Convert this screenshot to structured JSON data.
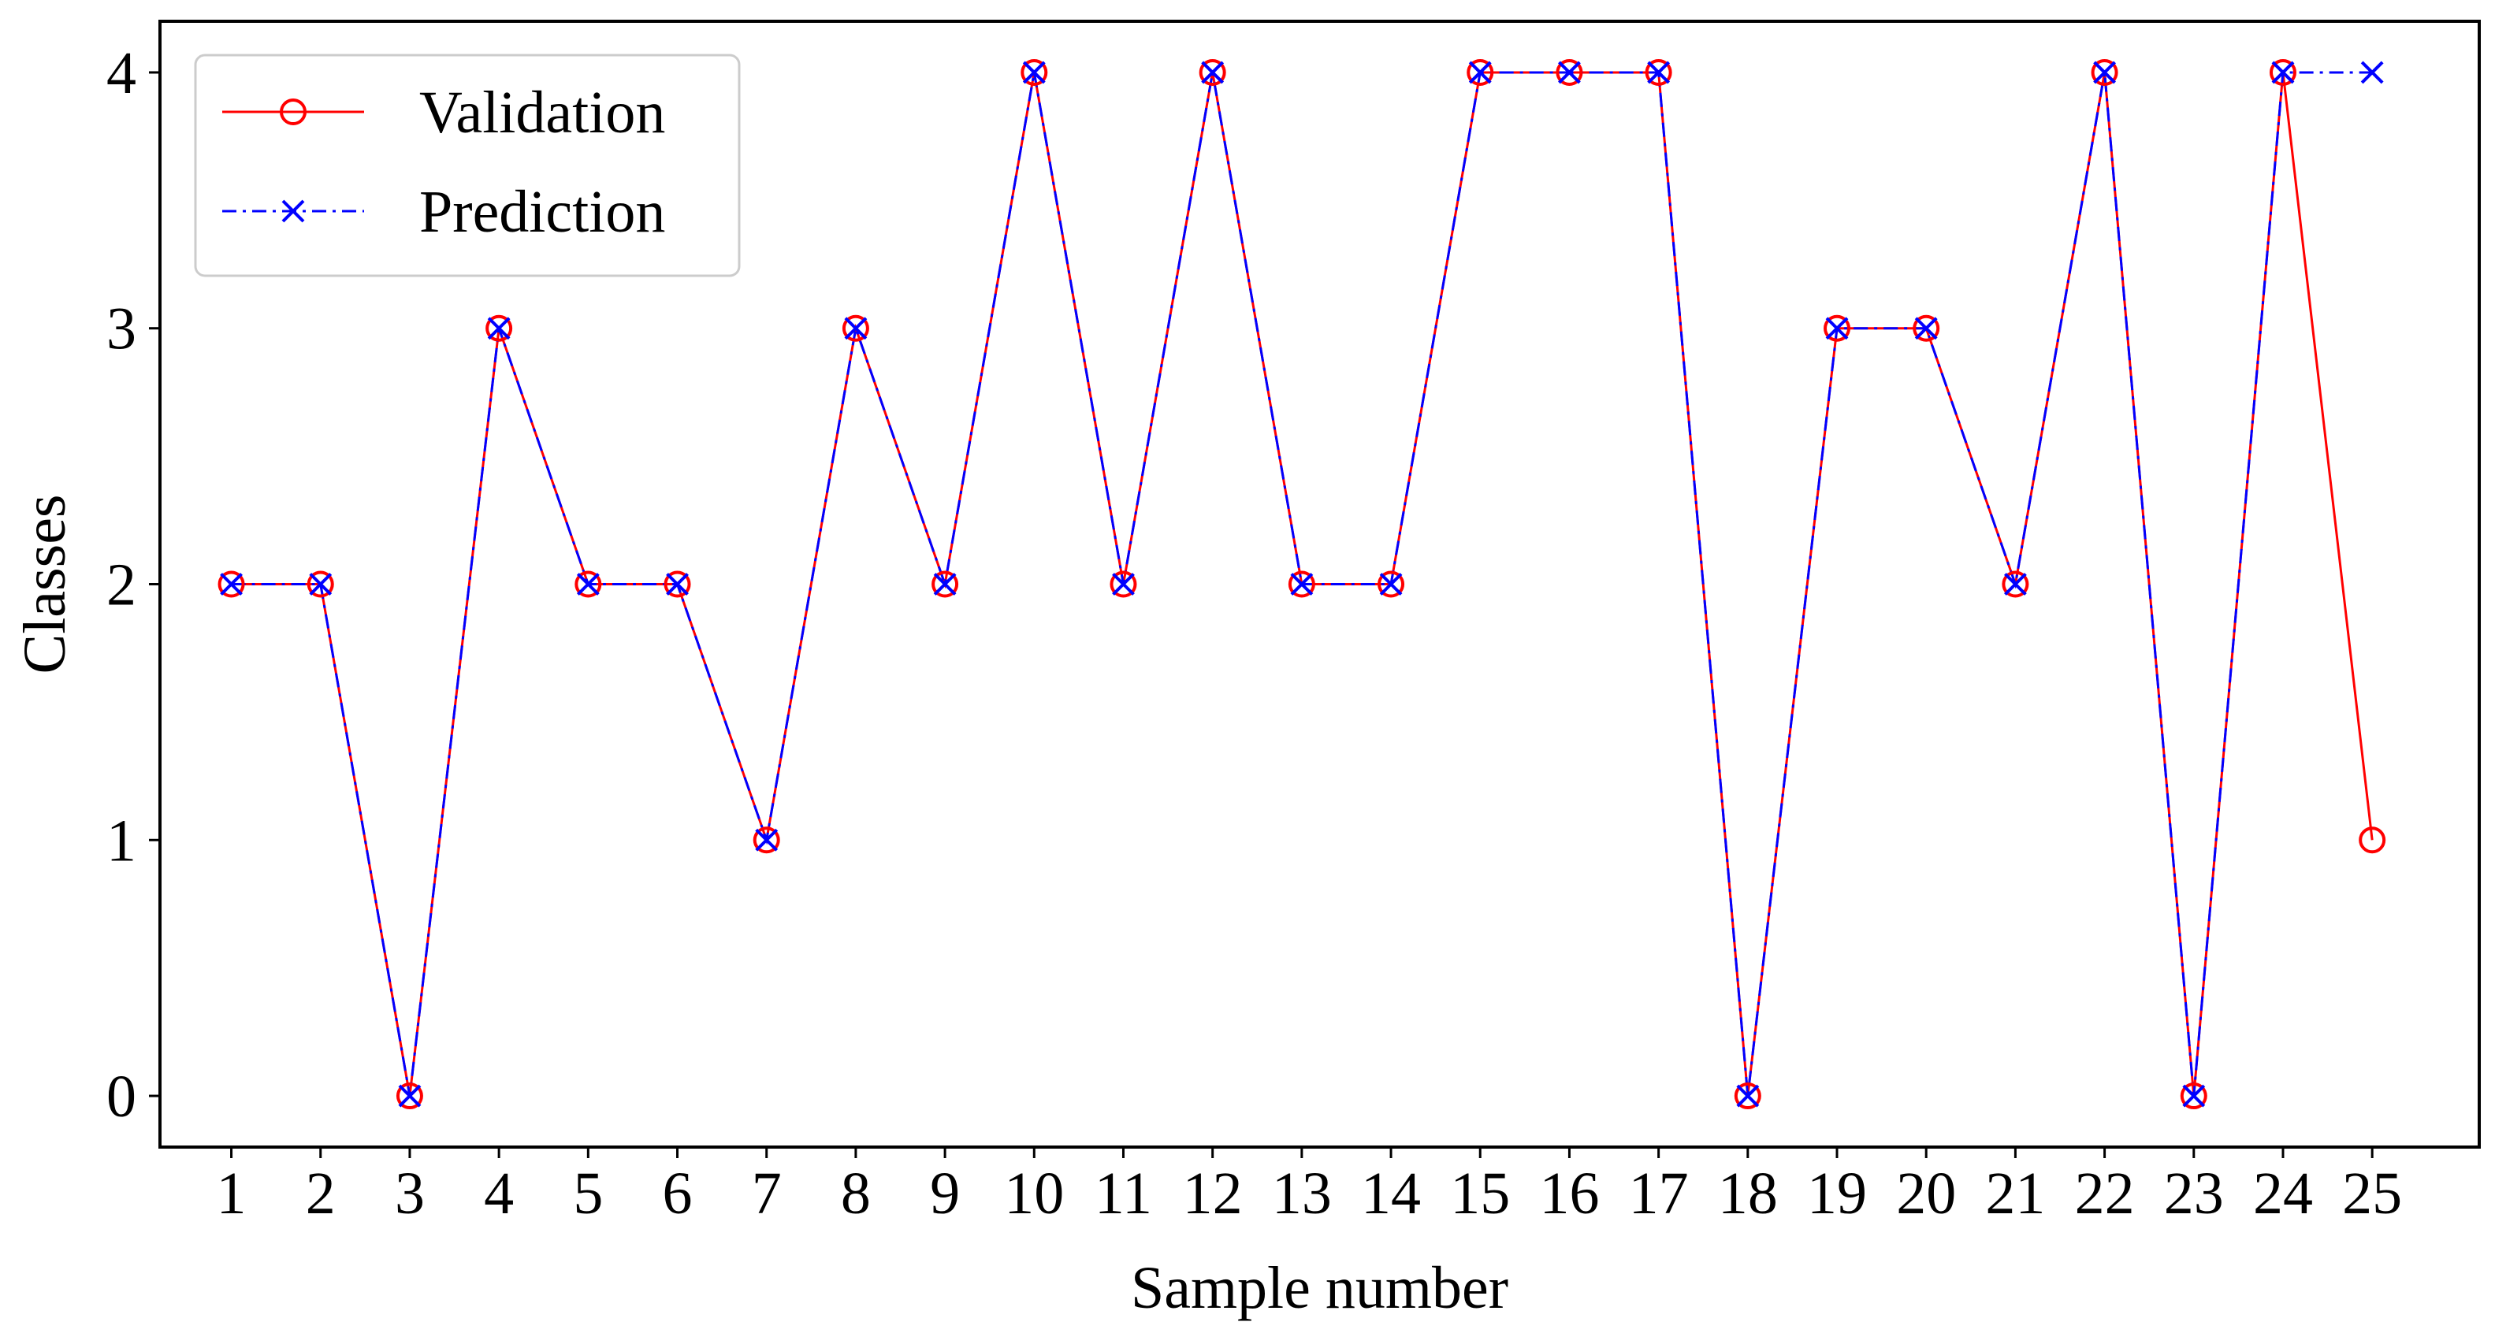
{
  "chart_data": {
    "type": "line",
    "title": "",
    "xlabel": "Sample number",
    "ylabel": "Classes",
    "x": [
      1,
      2,
      3,
      4,
      5,
      6,
      7,
      8,
      9,
      10,
      11,
      12,
      13,
      14,
      15,
      16,
      17,
      18,
      19,
      20,
      21,
      22,
      23,
      24,
      25
    ],
    "xlim": [
      0.2,
      26.2
    ],
    "ylim": [
      -0.2,
      4.2
    ],
    "xticks": [
      "1",
      "2",
      "3",
      "4",
      "5",
      "6",
      "7",
      "8",
      "9",
      "10",
      "11",
      "12",
      "13",
      "14",
      "15",
      "16",
      "17",
      "18",
      "19",
      "20",
      "21",
      "22",
      "23",
      "24",
      "25"
    ],
    "yticks": [
      "0",
      "1",
      "2",
      "3",
      "4"
    ],
    "grid": false,
    "legend_position": "top-left",
    "series": [
      {
        "name": "Validation",
        "values": [
          2,
          2,
          0,
          3,
          2,
          2,
          1,
          3,
          2,
          4,
          2,
          4,
          2,
          2,
          4,
          4,
          4,
          0,
          3,
          3,
          2,
          4,
          0,
          4,
          1
        ],
        "color": "#ff0000",
        "marker": "circle",
        "linestyle": "solid"
      },
      {
        "name": "Prediction",
        "values": [
          2,
          2,
          0,
          3,
          2,
          2,
          1,
          3,
          2,
          4,
          2,
          4,
          2,
          2,
          4,
          4,
          4,
          0,
          3,
          3,
          2,
          4,
          0,
          4,
          4
        ],
        "color": "#0000ff",
        "marker": "x",
        "linestyle": "dashdot"
      }
    ]
  }
}
